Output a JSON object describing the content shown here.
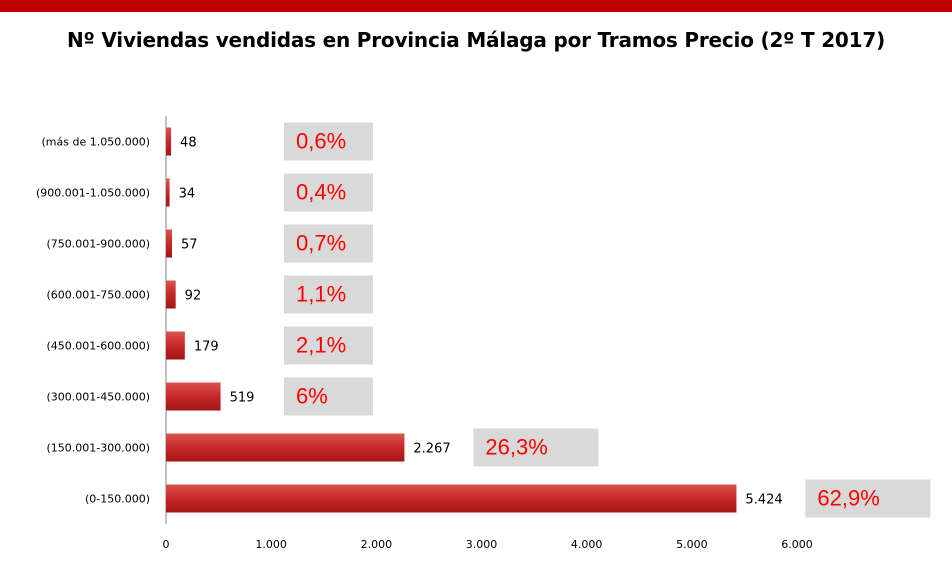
{
  "title": "Nº Viviendas vendidas en Provincia Málaga por Tramos Precio (2º T 2017)",
  "colors": {
    "top_bar": "#c00000",
    "bar_dark": "#b22222",
    "bar_light": "#d9534f",
    "percent_text": "#ff0000",
    "percent_box": "#d9d9d9",
    "axis": "#868686"
  },
  "chart_data": {
    "type": "bar",
    "orientation": "horizontal",
    "title": "Nº Viviendas vendidas en Provincia Málaga por Tramos Precio (2º T 2017)",
    "categories": [
      "(más de 1.050.000)",
      "(900.001-1.050.000)",
      "(750.001-900.000)",
      "(600.001-750.000)",
      "(450.001-600.000)",
      "(300.001-450.000)",
      "(150.001-300.000)",
      "(0-150.000)"
    ],
    "values": [
      48,
      34,
      57,
      92,
      179,
      519,
      2267,
      5424
    ],
    "value_labels": [
      "48",
      "34",
      "57",
      "92",
      "179",
      "519",
      "2.267",
      "5.424"
    ],
    "percent_labels": [
      "0,6%",
      "0,4%",
      "0,7%",
      "1,1%",
      "2,1%",
      "6%",
      "26,3%",
      "62,9%"
    ],
    "xlim": [
      0,
      6000
    ],
    "x_ticks": [
      0,
      1000,
      2000,
      3000,
      4000,
      5000,
      6000
    ],
    "x_tick_labels": [
      "0",
      "1.000",
      "2.000",
      "3.000",
      "4.000",
      "5.000",
      "6.000"
    ],
    "grid": false,
    "legend": "none"
  }
}
